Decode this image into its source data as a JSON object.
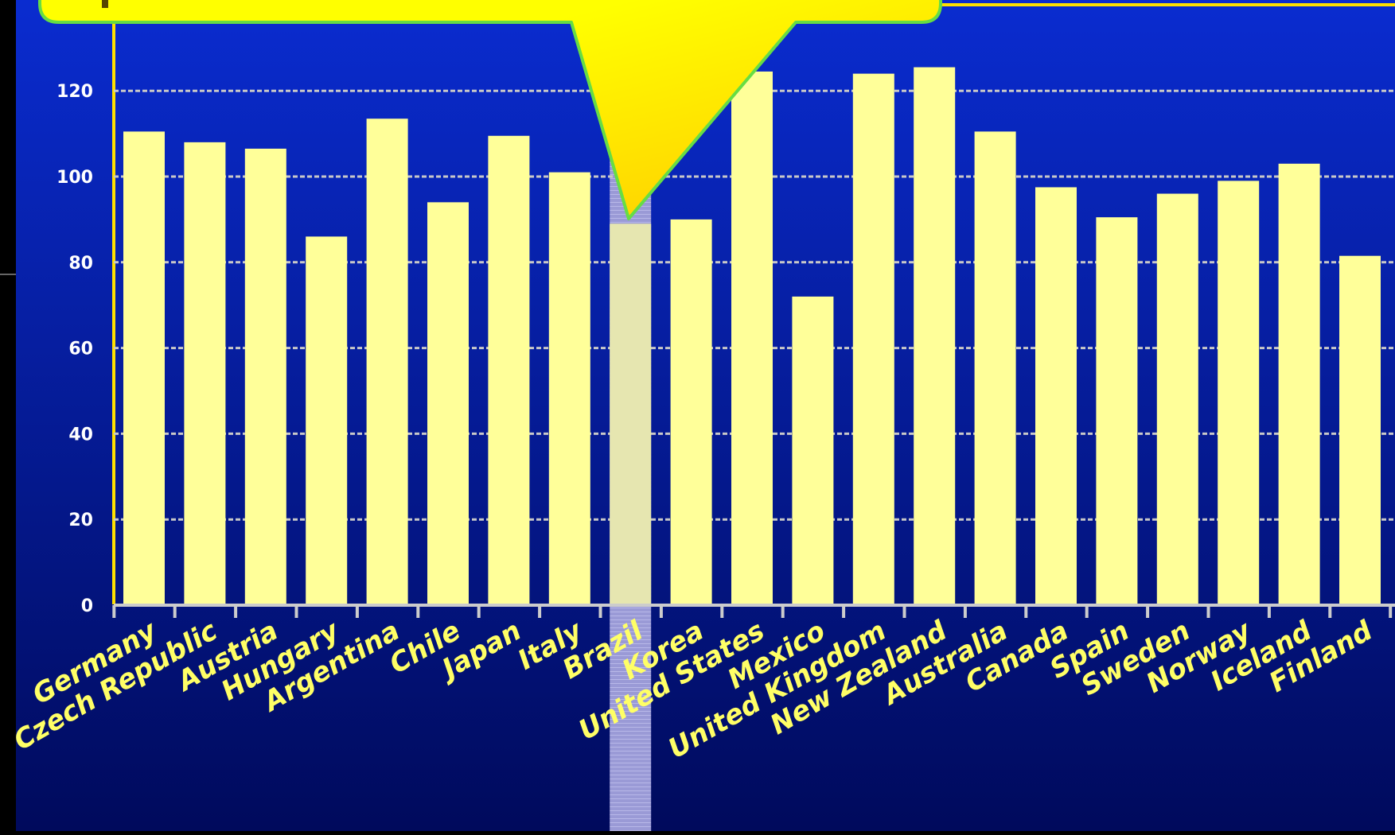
{
  "colors": {
    "background_top": "#0a2cd0",
    "background_bottom": "#000a5c",
    "bar_fill": "#ffff99",
    "highlight_bar_fill": "#e6e6b0",
    "highlight_column": "#9a9ad6",
    "label_color": "#ffff66",
    "axis_color": "#cccccc",
    "grid_color": "#c8c8c8",
    "frame_color": "#ffe000",
    "callout_light": "#ffff00",
    "callout_dark": "#ffc800",
    "callout_border": "#66dd44"
  },
  "chart_data": {
    "type": "bar",
    "title": "",
    "xlabel": "",
    "ylabel": "",
    "ylim": [
      0,
      130
    ],
    "yticks": [
      0,
      20,
      40,
      60,
      80,
      100,
      120
    ],
    "ytick_labels": [
      "0",
      "20",
      "40",
      "60",
      "80",
      "100",
      "120"
    ],
    "grid": true,
    "legend": "none",
    "highlight_category": "Brazil",
    "categories": [
      "Germany",
      "Czech Republic",
      "Austria",
      "Hungary",
      "Argentina",
      "Chile",
      "Japan",
      "Italy",
      "Brazil",
      "Korea",
      "United States",
      "Mexico",
      "United Kingdom",
      "New Zealand",
      "Australia",
      "Canada",
      "Spain",
      "Sweden",
      "Norway",
      "Iceland",
      "Finland"
    ],
    "values": [
      110.5,
      108,
      106.5,
      86,
      113.5,
      94,
      109.5,
      101,
      89,
      90,
      124.5,
      72,
      124,
      125.5,
      110.5,
      97.5,
      90.5,
      96,
      99,
      103,
      81.5
    ]
  }
}
